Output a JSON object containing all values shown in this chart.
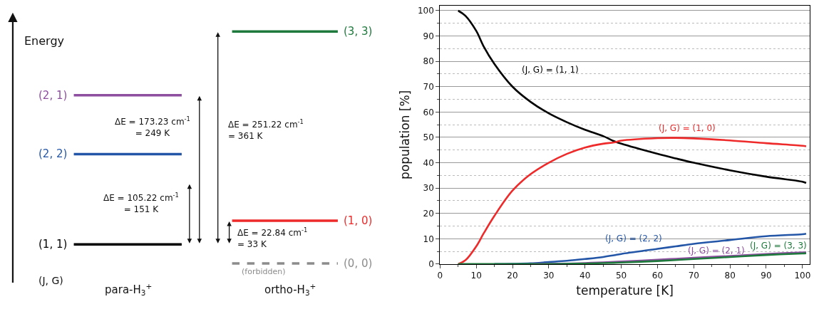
{
  "chart_data": [
    {
      "type": "other",
      "annotations": [
        "Energy",
        "(2, 1)",
        "(2, 2)",
        "(1, 1)",
        "(3, 3)",
        "(1, 0)",
        "(0, 0)",
        "(forbidden)",
        "(J, G)",
        "para-H$_{3}$$^{+}$",
        "ortho-H$_{3}$$^{+}$",
        "ΔE = 173.23 cm$^{-1}$\n= 249 K",
        "ΔE = 105.22 cm$^{-1}$\n= 151 K",
        "ΔE = 251.22 cm$^{-1}$\n= 361 K",
        "ΔE = 22.84 cm$^{-1}$\n= 33 K"
      ]
    },
    {
      "type": "line",
      "xlabel": "temperature [K]",
      "ylabel": "population [%]",
      "xlim": [
        0,
        102
      ],
      "ylim": [
        0,
        102
      ],
      "xticks": [
        0,
        10,
        20,
        30,
        40,
        50,
        60,
        70,
        80,
        90,
        100
      ],
      "yticks": [
        0,
        10,
        20,
        30,
        40,
        50,
        60,
        70,
        80,
        90,
        100
      ],
      "grid": "y",
      "x": [
        5,
        7,
        10,
        12,
        15,
        20,
        25,
        30,
        35,
        40,
        45,
        48,
        50,
        60,
        65,
        70,
        80,
        90,
        100,
        101
      ],
      "series": [
        {
          "color": "#000000",
          "values": [
            100,
            98,
            92,
            86,
            79,
            70,
            64,
            59.5,
            56,
            53,
            50.5,
            48.5,
            47.5,
            43.5,
            41.7,
            40,
            37,
            34.5,
            32.5,
            32
          ]
        },
        {
          "color": "#ee2a2a",
          "values": [
            0,
            1.5,
            7,
            12,
            19,
            29,
            35.5,
            40,
            43.5,
            46,
            47.5,
            48,
            48.7,
            49.7,
            49.8,
            49.6,
            48.8,
            47.7,
            46.7,
            46.5
          ]
        },
        {
          "color": "#2456a8",
          "values": [
            null,
            null,
            null,
            null,
            0,
            0.1,
            0.3,
            0.8,
            1.3,
            2,
            2.8,
            3.5,
            4,
            6,
            7,
            8,
            9.5,
            11,
            11.8,
            12
          ]
        },
        {
          "color": "#8e4fa0",
          "values": [
            null,
            null,
            null,
            null,
            null,
            null,
            0,
            0.1,
            0.2,
            0.4,
            0.7,
            0.9,
            1,
            1.7,
            2.1,
            2.5,
            3.2,
            4,
            4.6,
            4.7
          ]
        },
        {
          "color": "#1e7a3c",
          "values": [
            0,
            0,
            0,
            0,
            0,
            0,
            0,
            0,
            0.1,
            0.2,
            0.4,
            0.5,
            0.6,
            1.2,
            1.6,
            2,
            2.8,
            3.6,
            4.2,
            4.3
          ]
        }
      ],
      "annotations": [
        "(J, G) = (1, 1)",
        "(J, G) = (1, 0)",
        "(J, G) = (2, 2)",
        "(J, G) = (2, 1)",
        "(J, G) = (3, 3)"
      ]
    }
  ]
}
